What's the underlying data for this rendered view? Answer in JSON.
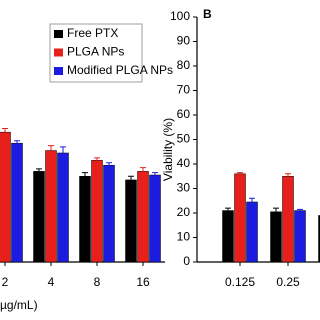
{
  "chart_data": [
    {
      "type": "bar",
      "x_label": "(µg/mL)",
      "categories": [
        "2",
        "4",
        "8",
        "16"
      ],
      "series": [
        {
          "name": "Free PTX",
          "color": "#000000",
          "values": [
            null,
            37,
            35,
            33.5
          ],
          "errors": [
            null,
            1,
            1.5,
            1.5
          ]
        },
        {
          "name": "PLGA NPs",
          "color": "#e8201c",
          "values": [
            53,
            45.5,
            41.5,
            37
          ],
          "errors": [
            1.5,
            2,
            1,
            1.5
          ]
        },
        {
          "name": "Modified PLGA NPs",
          "color": "#1c1ce0",
          "values": [
            48.5,
            44.5,
            39.5,
            35.5
          ],
          "errors": [
            1,
            2.5,
            1,
            1
          ]
        }
      ],
      "ylim": [
        0,
        100
      ],
      "legend": "top-right"
    },
    {
      "type": "bar",
      "label": "B",
      "y_label": "Viability (%)",
      "categories": [
        "0.125",
        "0.25",
        null
      ],
      "series": [
        {
          "name": "Free PTX",
          "color": "#000000",
          "values": [
            21,
            20.5,
            19
          ],
          "errors": [
            1,
            1.5,
            null
          ]
        },
        {
          "name": "PLGA NPs",
          "color": "#e8201c",
          "values": [
            36,
            35,
            null
          ],
          "errors": [
            0.5,
            1,
            null
          ]
        },
        {
          "name": "Modified PLGA NPs",
          "color": "#1c1ce0",
          "values": [
            24.5,
            21,
            null
          ],
          "errors": [
            1.5,
            0.5,
            null
          ]
        }
      ],
      "ylim": [
        0,
        100
      ],
      "yticks": [
        0,
        10,
        20,
        30,
        40,
        50,
        60,
        70,
        80,
        90,
        100
      ]
    }
  ]
}
